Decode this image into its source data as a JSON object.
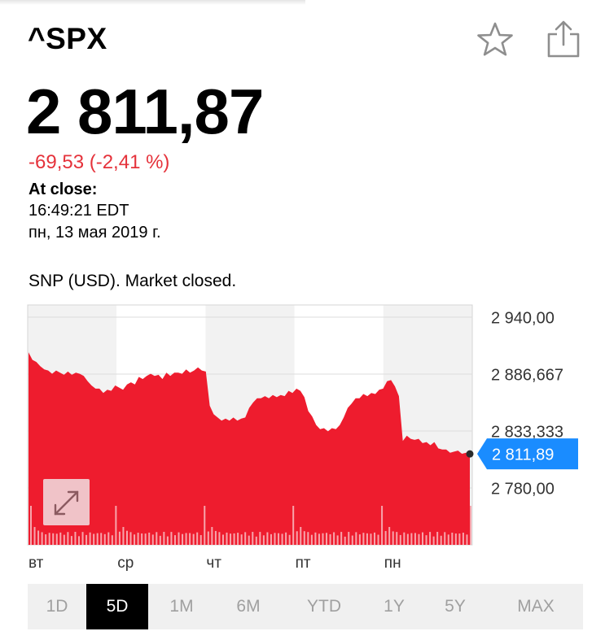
{
  "header": {
    "ticker": "^SPX",
    "icons": [
      "star-icon",
      "share-icon"
    ]
  },
  "quote": {
    "price": "2 811,87",
    "change": "-69,53 (-2,41 %)",
    "change_color": "#e5323b",
    "at_close_label": "At close:",
    "time": "16:49:21 EDT",
    "date": "пн, 13 мая 2019 г."
  },
  "market_status": "SNP (USD). Market closed.",
  "chart_data": {
    "type": "area",
    "title": "",
    "xlabel": "",
    "ylabel": "",
    "ylim": [
      2760,
      2940
    ],
    "yticks": [
      "2 940,00",
      "2 886,667",
      "2 833,333",
      "2 780,00"
    ],
    "ytick_values": [
      2940,
      2886.667,
      2833.333,
      2780
    ],
    "day_labels": [
      "вт",
      "ср",
      "чт",
      "пт",
      "пн"
    ],
    "last_value": 2811.89,
    "last_label": "2 811,89",
    "fill_color": "#ee1c2e",
    "accent_color": "#1a8cff",
    "grid": true,
    "series": [
      {
        "values": [
          2907,
          2900,
          2898,
          2894,
          2891,
          2890,
          2887,
          2890,
          2888,
          2886,
          2889,
          2886,
          2888,
          2887,
          2885,
          2880,
          2876,
          2873,
          2873,
          2869,
          2872,
          2871,
          2876,
          2874,
          2872,
          2877,
          2879,
          2877,
          2884,
          2882,
          2885,
          2887,
          2885,
          2886,
          2882,
          2888,
          2885,
          2888,
          2888,
          2887,
          2891,
          2888,
          2890,
          2893,
          2890,
          2889,
          2857,
          2849,
          2846,
          2843,
          2845,
          2843,
          2846,
          2843,
          2845,
          2846,
          2855,
          2860,
          2864,
          2864,
          2866,
          2864,
          2867,
          2865,
          2867,
          2866,
          2871,
          2869,
          2873,
          2871,
          2865,
          2852,
          2847,
          2839,
          2835,
          2836,
          2833,
          2836,
          2835,
          2839,
          2846,
          2855,
          2859,
          2864,
          2864,
          2868,
          2866,
          2869,
          2868,
          2872,
          2873,
          2880,
          2881,
          2875,
          2866,
          2824,
          2829,
          2826,
          2825,
          2826,
          2822,
          2823,
          2820,
          2823,
          2817,
          2816,
          2816,
          2813,
          2814,
          2815,
          2812,
          2813,
          2811.89
        ]
      }
    ]
  },
  "timeframes": [
    {
      "label": "1D"
    },
    {
      "label": "5D",
      "active": true
    },
    {
      "label": "1M"
    },
    {
      "label": "6M"
    },
    {
      "label": "YTD"
    },
    {
      "label": "1Y"
    },
    {
      "label": "5Y"
    },
    {
      "label": "MAX"
    }
  ]
}
